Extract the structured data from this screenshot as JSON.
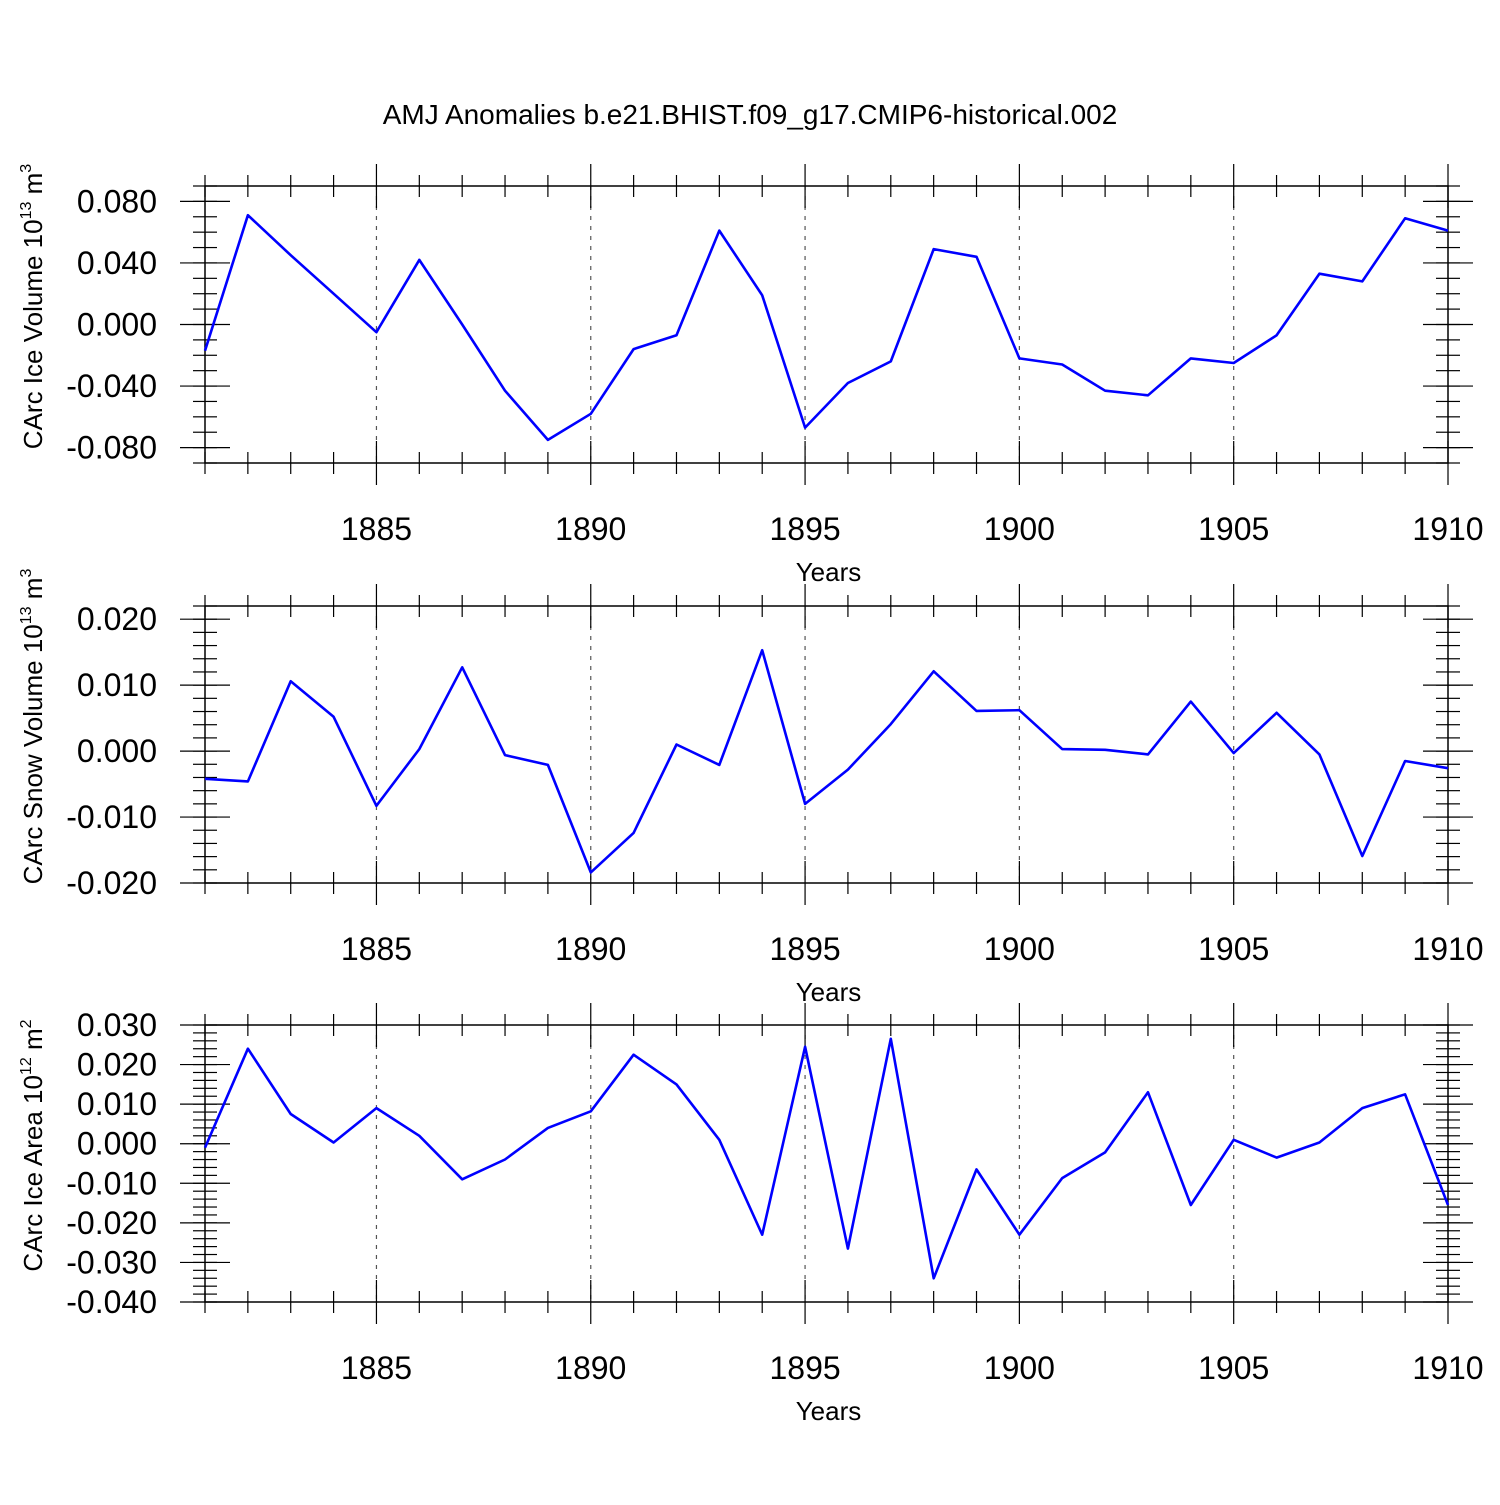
{
  "title": "AMJ Anomalies b.e21.BHIST.f09_g17.CMIP6-historical.002",
  "colors": {
    "line": "#0000ff",
    "axis": "#000000",
    "grid": "#555555"
  },
  "chart_data": [
    {
      "type": "line",
      "name": "ice-volume",
      "ylabel": "CArc Ice Volume 10",
      "ylabel_exp": "13",
      "ylabel_unit": " m",
      "ylabel_unit_exp": "3",
      "xlabel": "Years",
      "xlim": [
        1881,
        1910
      ],
      "ylim": [
        -0.09,
        0.09
      ],
      "x_ticks": [
        1885,
        1890,
        1895,
        1900,
        1905,
        1910
      ],
      "x_tick_labels": [
        "1885",
        "1890",
        "1895",
        "1900",
        "1905",
        "1910"
      ],
      "y_ticks": [
        -0.08,
        -0.04,
        0.0,
        0.04,
        0.08
      ],
      "y_tick_labels": [
        "-0.080",
        "-0.040",
        "0.000",
        "0.040",
        "0.080"
      ],
      "y_minor_step": 0.01,
      "x": [
        1881,
        1882,
        1883,
        1884,
        1885,
        1886,
        1887,
        1888,
        1889,
        1890,
        1891,
        1892,
        1893,
        1894,
        1895,
        1896,
        1897,
        1898,
        1899,
        1900,
        1901,
        1902,
        1903,
        1904,
        1905,
        1906,
        1907,
        1908,
        1909,
        1910
      ],
      "values": [
        -0.017,
        0.071,
        0.045,
        0.02,
        -0.005,
        0.042,
        0.0,
        -0.043,
        -0.075,
        -0.058,
        -0.016,
        -0.007,
        0.061,
        0.019,
        -0.067,
        -0.038,
        -0.024,
        0.049,
        0.044,
        -0.022,
        -0.026,
        -0.043,
        -0.046,
        -0.022,
        -0.025,
        -0.007,
        0.033,
        0.028,
        0.069,
        0.061
      ]
    },
    {
      "type": "line",
      "name": "snow-volume",
      "ylabel": "CArc Snow Volume 10",
      "ylabel_exp": "13",
      "ylabel_unit": " m",
      "ylabel_unit_exp": "3",
      "xlabel": "Years",
      "xlim": [
        1881,
        1910
      ],
      "ylim": [
        -0.02,
        0.022
      ],
      "x_ticks": [
        1885,
        1890,
        1895,
        1900,
        1905,
        1910
      ],
      "x_tick_labels": [
        "1885",
        "1890",
        "1895",
        "1900",
        "1905",
        "1910"
      ],
      "y_ticks": [
        -0.02,
        -0.01,
        0.0,
        0.01,
        0.02
      ],
      "y_tick_labels": [
        "-0.020",
        "-0.010",
        "0.000",
        "0.010",
        "0.020"
      ],
      "y_minor_step": 0.002,
      "x": [
        1881,
        1882,
        1883,
        1884,
        1885,
        1886,
        1887,
        1888,
        1889,
        1890,
        1891,
        1892,
        1893,
        1894,
        1895,
        1896,
        1897,
        1898,
        1899,
        1900,
        1901,
        1902,
        1903,
        1904,
        1905,
        1906,
        1907,
        1908,
        1909,
        1910
      ],
      "values": [
        -0.0042,
        -0.0046,
        0.0106,
        0.0052,
        -0.0083,
        0.0003,
        0.0127,
        -0.0006,
        -0.0021,
        -0.0184,
        -0.0124,
        0.001,
        -0.0021,
        0.0153,
        -0.008,
        -0.0028,
        0.0041,
        0.0121,
        0.0061,
        0.0062,
        0.0003,
        0.0002,
        -0.0005,
        0.0075,
        -0.0003,
        0.0058,
        -0.0005,
        -0.0159,
        -0.0015,
        -0.0026
      ]
    },
    {
      "type": "line",
      "name": "ice-area",
      "ylabel": "CArc Ice Area 10",
      "ylabel_exp": "12",
      "ylabel_unit": " m",
      "ylabel_unit_exp": "2",
      "xlabel": "Years",
      "xlim": [
        1881,
        1910
      ],
      "ylim": [
        -0.04,
        0.03
      ],
      "x_ticks": [
        1885,
        1890,
        1895,
        1900,
        1905,
        1910
      ],
      "x_tick_labels": [
        "1885",
        "1890",
        "1895",
        "1900",
        "1905",
        "1910"
      ],
      "y_ticks": [
        -0.04,
        -0.03,
        -0.02,
        -0.01,
        0.0,
        0.01,
        0.02,
        0.03
      ],
      "y_tick_labels": [
        "-0.040",
        "-0.030",
        "-0.020",
        "-0.010",
        "0.000",
        "0.010",
        "0.020",
        "0.030"
      ],
      "y_minor_step": 0.002,
      "x": [
        1881,
        1882,
        1883,
        1884,
        1885,
        1886,
        1887,
        1888,
        1889,
        1890,
        1891,
        1892,
        1893,
        1894,
        1895,
        1896,
        1897,
        1898,
        1899,
        1900,
        1901,
        1902,
        1903,
        1904,
        1905,
        1906,
        1907,
        1908,
        1909,
        1910
      ],
      "values": [
        -0.001,
        0.024,
        0.0075,
        0.0003,
        0.009,
        0.002,
        -0.009,
        -0.004,
        0.004,
        0.0082,
        0.0225,
        0.015,
        0.001,
        -0.023,
        0.0245,
        -0.0265,
        0.0265,
        -0.034,
        -0.0065,
        -0.023,
        -0.0087,
        -0.0022,
        0.013,
        -0.0155,
        0.001,
        -0.0035,
        0.0003,
        0.009,
        0.0125,
        -0.0155
      ]
    }
  ]
}
